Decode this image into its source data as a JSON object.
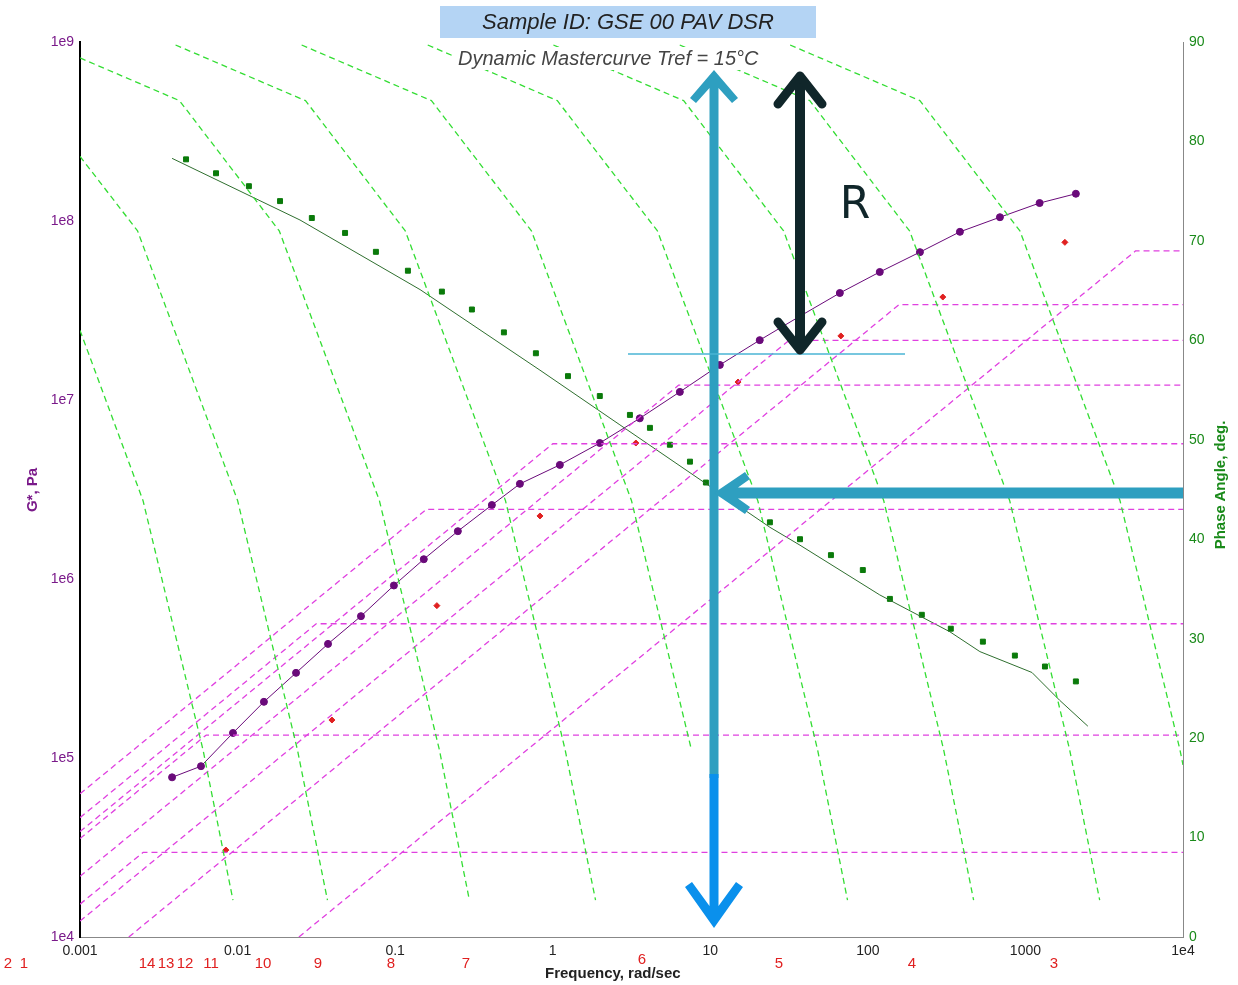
{
  "chart_data": {
    "type": "line",
    "title": "Sample ID: GSE 00 PAV DSR",
    "subtitle": "Dynamic Mastercurve Tref = 15°C",
    "xlabel": "Frequency, rad/sec",
    "ylabel": "G*, Pa",
    "y2label": "Phase Angle, deg.",
    "log": "xy",
    "grid": false,
    "legend": false,
    "xlim": [
      0.001,
      10000
    ],
    "xticks": [
      0.001,
      0.01,
      0.1,
      1,
      10,
      100,
      1000,
      {
        "value": 10000,
        "label": "1e4"
      }
    ],
    "ylim": [
      10000,
      1000000000
    ],
    "yticks": [
      {
        "value": 10000,
        "label": "1e4"
      },
      {
        "value": 100000,
        "label": "1e5"
      },
      {
        "value": 1000000,
        "label": "1e6"
      },
      {
        "value": 10000000,
        "label": "1e7"
      },
      {
        "value": 100000000,
        "label": "1e8"
      },
      {
        "value": 1000000000,
        "label": "1e9"
      }
    ],
    "y2lim": [
      0,
      90
    ],
    "y2ticks": [
      0,
      10,
      20,
      30,
      40,
      50,
      60,
      70,
      80,
      90
    ],
    "series": [
      {
        "type": "line",
        "line_style": "dashed",
        "marker": "none",
        "axis": "y2",
        "color": "#33dd33",
        "x": [
          0.001,
          0.00251,
          0.00604,
          0.00935
        ],
        "values": [
          61,
          43.9,
          18.8,
          3.7
        ]
      },
      {
        "type": "line",
        "line_style": "dashed",
        "marker": "none",
        "axis": "y2",
        "color": "#33dd33",
        "x": [
          0.001,
          0.00232,
          0.01,
          0.024,
          0.0372
        ],
        "values": [
          78.5,
          71,
          43.9,
          18.8,
          3.7
        ]
      },
      {
        "type": "line",
        "line_style": "dashed",
        "marker": "none",
        "axis": "y2",
        "color": "#33dd33",
        "x": [
          0.001,
          0.00428,
          0.0184,
          0.0794,
          0.191,
          0.296
        ],
        "values": [
          88.4,
          84.1,
          71,
          43.9,
          18.8,
          3.7
        ]
      },
      {
        "type": "line",
        "line_style": "dashed",
        "marker": "none",
        "axis": "y2",
        "color": "#33dd33",
        "x": [
          0.00404,
          0.027,
          0.116,
          0.501,
          1.2,
          1.87
        ],
        "values": [
          89.7,
          84.1,
          71,
          43.9,
          18.8,
          3.7
        ]
      },
      {
        "type": "line",
        "line_style": "dashed",
        "marker": "none",
        "axis": "y2",
        "color": "#33dd33",
        "x": [
          0.0255,
          0.17,
          0.733,
          3.16,
          7.6
        ],
        "values": [
          89.7,
          84.1,
          71,
          43.9,
          18.8
        ]
      },
      {
        "type": "line",
        "line_style": "dashed",
        "marker": "none",
        "axis": "y2",
        "color": "#33dd33",
        "x": [
          0.161,
          1.07,
          4.62,
          20,
          48,
          74.3
        ],
        "values": [
          89.7,
          84.1,
          71,
          43.9,
          18.8,
          3.7
        ]
      },
      {
        "type": "line",
        "line_style": "dashed",
        "marker": "none",
        "axis": "y2",
        "color": "#33dd33",
        "x": [
          1.01,
          6.78,
          29.2,
          126,
          303,
          469
        ],
        "values": [
          89.7,
          84.1,
          71,
          43.9,
          18.8,
          3.7
        ]
      },
      {
        "type": "line",
        "line_style": "dashed",
        "marker": "none",
        "axis": "y2",
        "color": "#33dd33",
        "x": [
          6.4,
          42.8,
          184,
          794,
          1910,
          2960
        ],
        "values": [
          89.7,
          84.1,
          71,
          43.9,
          18.8,
          3.7
        ]
      },
      {
        "type": "line",
        "line_style": "dashed",
        "marker": "none",
        "axis": "y2",
        "color": "#33dd33",
        "x": [
          32.1,
          214,
          923,
          3980,
          9570,
          10000
        ],
        "values": [
          89.7,
          84.1,
          71,
          43.9,
          18.8,
          17.3
        ]
      },
      {
        "type": "line",
        "line_style": "dashed",
        "marker": "none",
        "axis": "y2",
        "color": "#e040e0",
        "x": [
          0.0245,
          5010,
          10000
        ],
        "values": [
          0,
          69,
          69
        ]
      },
      {
        "type": "line",
        "line_style": "dashed",
        "marker": "none",
        "axis": "y2",
        "color": "#e040e0",
        "x": [
          0.00204,
          158,
          10000
        ],
        "values": [
          0,
          63.6,
          63.6
        ]
      },
      {
        "type": "line",
        "line_style": "dashed",
        "marker": "none",
        "axis": "y2",
        "color": "#e040e0",
        "x": [
          0.001,
          31.6,
          10000
        ],
        "values": [
          1.6,
          60,
          60
        ]
      },
      {
        "type": "line",
        "line_style": "dashed",
        "marker": "none",
        "axis": "y2",
        "color": "#e040e0",
        "x": [
          0.001,
          6.31,
          10000
        ],
        "values": [
          6.1,
          55.5,
          55.5
        ]
      },
      {
        "type": "line",
        "line_style": "dashed",
        "marker": "none",
        "axis": "y2",
        "color": "#e040e0",
        "x": [
          0.001,
          1,
          10000
        ],
        "values": [
          10.6,
          49.6,
          49.6
        ]
      },
      {
        "type": "line",
        "line_style": "dashed",
        "marker": "none",
        "axis": "y2",
        "color": "#e040e0",
        "x": [
          0.001,
          0.158,
          10000
        ],
        "values": [
          14.4,
          43,
          43
        ]
      },
      {
        "type": "line",
        "line_style": "dashed",
        "marker": "none",
        "axis": "y2",
        "color": "#e040e0",
        "x": [
          0.001,
          0.0316,
          10000
        ],
        "values": [
          12,
          31.5,
          31.5
        ]
      },
      {
        "type": "line",
        "line_style": "dashed",
        "marker": "none",
        "axis": "y2",
        "color": "#e040e0",
        "x": [
          0.001,
          0.00631,
          10000
        ],
        "values": [
          9.9,
          20.3,
          20.3
        ]
      },
      {
        "type": "line",
        "line_style": "dashed",
        "marker": "none",
        "axis": "y2",
        "color": "#e040e0",
        "x": [
          0.001,
          0.00251,
          10000
        ],
        "values": [
          3.3,
          8.5,
          8.5
        ]
      },
      {
        "line_style": "solid",
        "marker": "none",
        "axis": "y2",
        "color": "#2f6f2f",
        "x": [
          0.00384,
          0.0249,
          0.144,
          0.83,
          2.67,
          23.9,
          37.1,
          119,
          331,
          514,
          1100,
          1650,
          2490
        ],
        "values": [
          78.3,
          72.1,
          65.1,
          57.0,
          51.5,
          41.2,
          39.4,
          34.4,
          30.7,
          28.7,
          26.6,
          23.8,
          21.2
        ]
      },
      {
        "type": "scatter",
        "marker": "square",
        "axis": "y2",
        "color": "#0a7a0a",
        "x": [
          0.00471,
          0.0073,
          0.0118,
          0.0186,
          0.0296,
          0.0481,
          0.0755,
          0.1205,
          0.198,
          0.307,
          0.49,
          0.782,
          1.25,
          1.99,
          3.09,
          4.14,
          5.54,
          7.43,
          9.38,
          23.9,
          37.1,
          58.3,
          92.9,
          138,
          220,
          336,
          537,
          857,
          1330,
          2090
        ],
        "values": [
          78.2,
          76.8,
          75.5,
          74.0,
          72.3,
          70.8,
          68.9,
          67.0,
          64.9,
          63.1,
          60.8,
          58.7,
          56.4,
          54.4,
          52.5,
          51.2,
          49.5,
          47.8,
          45.7,
          41.7,
          40.0,
          38.4,
          36.9,
          34.0,
          32.4,
          31.0,
          29.7,
          28.3,
          27.2,
          25.7
        ]
      },
      {
        "line_style": "solid",
        "marker": "circle",
        "color": "#6a0a7a",
        "x": [
          0.00384,
          0.00586,
          0.00935,
          0.0147,
          0.0235,
          0.0375,
          0.0607,
          0.0982,
          0.152,
          0.25,
          0.411,
          0.619,
          1.11,
          1.99,
          3.57,
          6.41,
          11.5,
          20.6,
          37.1,
          66.4,
          119,
          214,
          384,
          689,
          1230,
          2090
        ],
        "values": [
          78000,
          90000,
          138000,
          206000,
          299000,
          434000,
          620000,
          920000,
          1290000,
          1850000,
          2590000,
          3400000,
          4340000,
          5750000,
          7900000,
          11100000,
          15700000,
          21600000,
          29400000,
          39600000,
          51900000,
          67000000,
          87000000,
          105000000,
          126000000,
          142000000
        ]
      },
      {
        "type": "scatter",
        "marker": "diamond",
        "color": "#e02020",
        "x": [
          0.00843,
          0.0397,
          0.184,
          0.83,
          3.37,
          15.0,
          67.4,
          299,
          1780
        ],
        "values": [
          30600,
          163000,
          710000,
          2250000,
          5750000,
          12600000,
          22800000,
          37600000,
          76000000
        ]
      }
    ],
    "annotations": [
      "R",
      "2",
      "1",
      "14",
      "13",
      "12",
      "11",
      "10",
      "9",
      "8",
      "7",
      "6",
      "5",
      "4",
      "3"
    ]
  }
}
